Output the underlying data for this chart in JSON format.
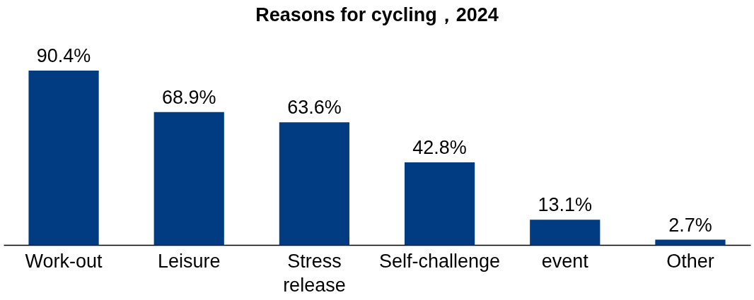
{
  "chart_data": {
    "type": "bar",
    "title": "Reasons for cycling，2024",
    "categories": [
      "Work-out",
      "Leisure",
      "Stress release",
      "Self-challenge",
      "event",
      "Other"
    ],
    "values": [
      90.4,
      68.9,
      63.6,
      42.8,
      13.1,
      2.7
    ],
    "value_labels": [
      "90.4%",
      "68.9%",
      "63.6%",
      "42.8%",
      "13.1%",
      "2.7%"
    ],
    "color": "#013c83"
  }
}
